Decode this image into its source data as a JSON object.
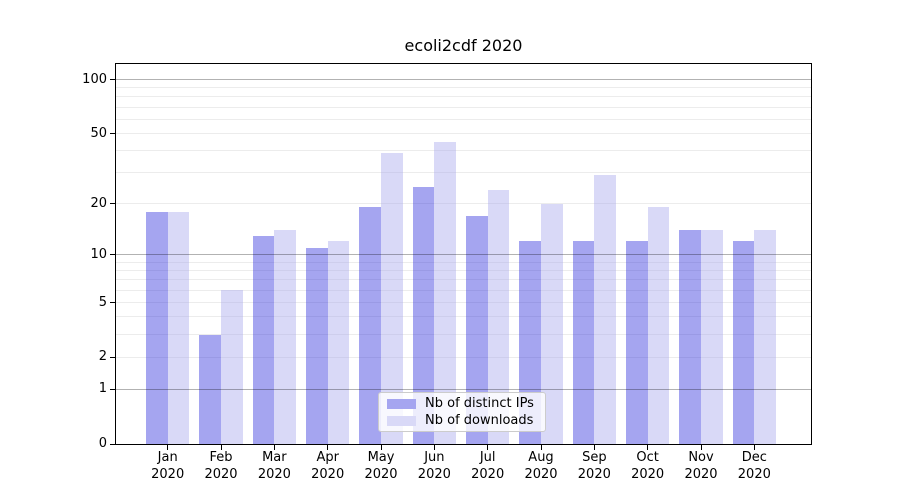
{
  "title": "ecoli2cdf 2020",
  "chart_data": {
    "type": "bar",
    "title": "ecoli2cdf 2020",
    "categories": [
      "Jan 2020",
      "Feb 2020",
      "Mar 2020",
      "Apr 2020",
      "May 2020",
      "Jun 2020",
      "Jul 2020",
      "Aug 2020",
      "Sep 2020",
      "Oct 2020",
      "Nov 2020",
      "Dec 2020"
    ],
    "series": [
      {
        "name": "Nb of distinct IPs",
        "color": "rgba(55,55,222,0.45)",
        "solid_color": "#a5a5f0",
        "values": [
          18,
          3,
          13,
          11,
          19,
          25,
          17,
          12,
          12,
          12,
          14,
          12
        ]
      },
      {
        "name": "Nb of downloads",
        "color": "rgba(171,171,237,0.45)",
        "solid_color": "#d9d9f7",
        "values": [
          18,
          6,
          14,
          12,
          39,
          45,
          24,
          20,
          29,
          19,
          14,
          14
        ]
      }
    ],
    "xlabel": "",
    "ylabel": "",
    "yscale": "log1p",
    "ylim": [
      0,
      122
    ],
    "yticks": [
      0,
      1,
      2,
      5,
      10,
      20,
      50,
      100
    ],
    "major_gridlines": [
      1,
      10,
      100
    ],
    "minor_gridlines": [
      2,
      3,
      4,
      5,
      6,
      7,
      8,
      9,
      20,
      30,
      40,
      50,
      60,
      70,
      80,
      90
    ],
    "grid": "on",
    "legend_position": "lower-center"
  },
  "legend": {
    "items": [
      {
        "label": "Nb of distinct IPs",
        "color": "#a5a5f0"
      },
      {
        "label": "Nb of downloads",
        "color": "#d9d9f7"
      }
    ]
  }
}
